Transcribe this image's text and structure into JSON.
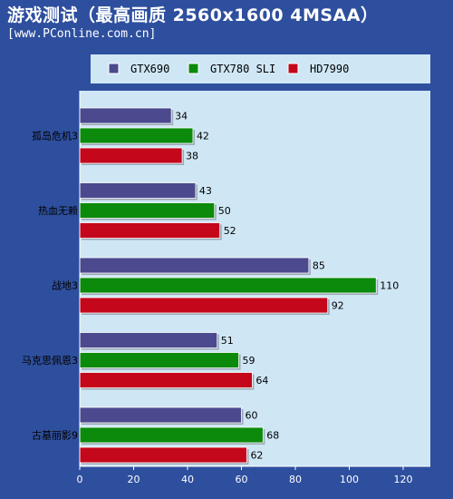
{
  "header": {
    "title": "游戏测试（最高画质 2560x1600 4MSAA）",
    "subtitle": "[www.PConline.com.cn]"
  },
  "chart_data": {
    "type": "bar",
    "orientation": "horizontal",
    "title": "游戏测试（最高画质 2560x1600 4MSAA）",
    "categories": [
      "孤岛危机3",
      "热血无赖",
      "战地3",
      "马克思佩恩3",
      "古墓丽影9"
    ],
    "series": [
      {
        "name": "GTX690",
        "color": "#4b4a8e",
        "values": [
          34,
          43,
          85,
          51,
          60
        ]
      },
      {
        "name": "GTX780 SLI",
        "color": "#0b8a0b",
        "values": [
          42,
          50,
          110,
          59,
          68
        ]
      },
      {
        "name": "HD7990",
        "color": "#c4071a",
        "values": [
          38,
          52,
          92,
          64,
          62
        ]
      }
    ],
    "xlim": [
      0,
      120
    ],
    "xticks": [
      0,
      20,
      40,
      60,
      80,
      100,
      120
    ],
    "legend_position": "top",
    "grid": false
  },
  "colors": {
    "background": "#2e4f9e",
    "plot_area": "#cfe7f5",
    "legend_bg": "#cfe7f5"
  }
}
